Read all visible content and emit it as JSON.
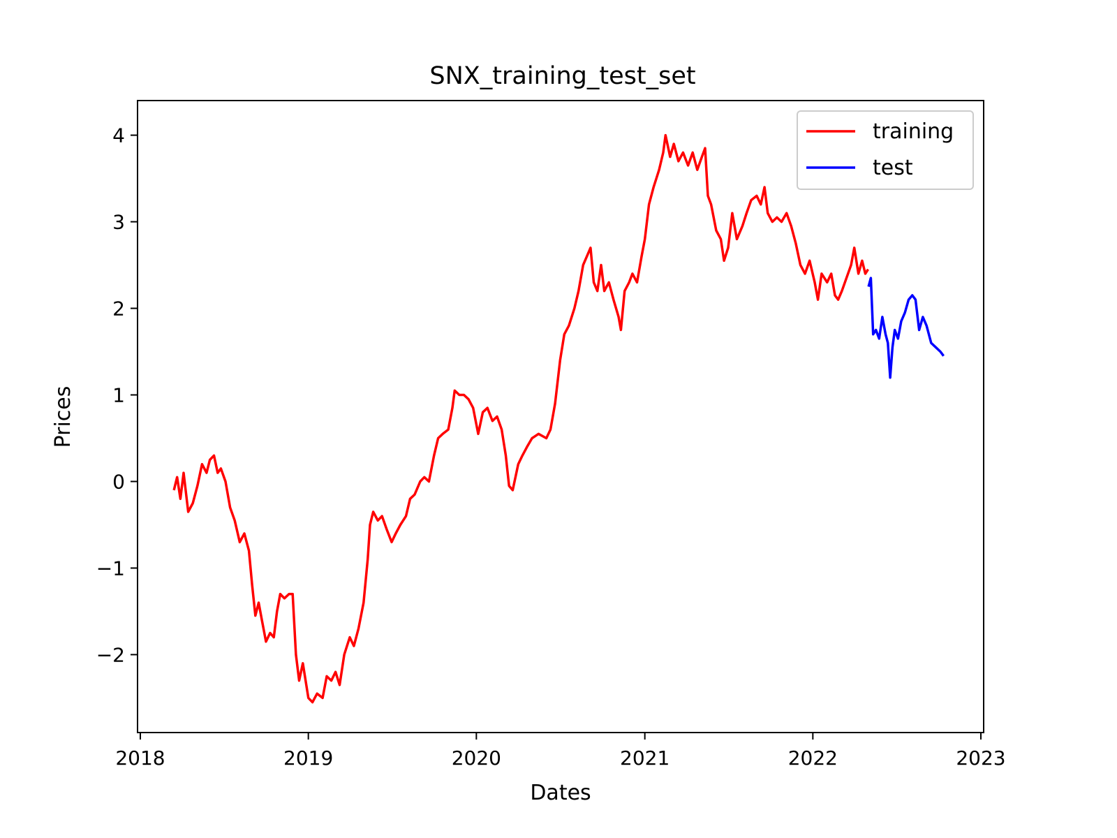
{
  "chart_data": {
    "type": "line",
    "title": "SNX_training_test_set",
    "xlabel": "Dates",
    "ylabel": "Prices",
    "xlim": [
      "2018-01-01",
      "2023-01-01"
    ],
    "ylim": [
      -2.9,
      4.4
    ],
    "x_ticks": [
      "2018",
      "2019",
      "2020",
      "2021",
      "2022",
      "2023"
    ],
    "y_ticks": [
      {
        "value": -2,
        "label": "−2"
      },
      {
        "value": -1,
        "label": "−1"
      },
      {
        "value": 0,
        "label": "0"
      },
      {
        "value": 1,
        "label": "1"
      },
      {
        "value": 2,
        "label": "2"
      },
      {
        "value": 3,
        "label": "3"
      },
      {
        "value": 4,
        "label": "4"
      }
    ],
    "grid": false,
    "legend_position": "top-right",
    "series": [
      {
        "name": "training",
        "color": "#ff0000",
        "points": [
          [
            "2018-03-15",
            -0.1
          ],
          [
            "2018-03-22",
            0.05
          ],
          [
            "2018-03-29",
            -0.2
          ],
          [
            "2018-04-05",
            0.1
          ],
          [
            "2018-04-15",
            -0.35
          ],
          [
            "2018-04-25",
            -0.25
          ],
          [
            "2018-05-05",
            -0.05
          ],
          [
            "2018-05-15",
            0.2
          ],
          [
            "2018-05-25",
            0.1
          ],
          [
            "2018-06-01",
            0.25
          ],
          [
            "2018-06-10",
            0.3
          ],
          [
            "2018-06-18",
            0.1
          ],
          [
            "2018-06-25",
            0.15
          ],
          [
            "2018-07-05",
            0.0
          ],
          [
            "2018-07-15",
            -0.3
          ],
          [
            "2018-07-25",
            -0.45
          ],
          [
            "2018-08-05",
            -0.7
          ],
          [
            "2018-08-15",
            -0.6
          ],
          [
            "2018-08-25",
            -0.8
          ],
          [
            "2018-09-01",
            -1.2
          ],
          [
            "2018-09-08",
            -1.55
          ],
          [
            "2018-09-15",
            -1.4
          ],
          [
            "2018-09-22",
            -1.6
          ],
          [
            "2018-10-01",
            -1.85
          ],
          [
            "2018-10-10",
            -1.75
          ],
          [
            "2018-10-18",
            -1.8
          ],
          [
            "2018-10-25",
            -1.5
          ],
          [
            "2018-11-01",
            -1.3
          ],
          [
            "2018-11-10",
            -1.35
          ],
          [
            "2018-11-20",
            -1.3
          ],
          [
            "2018-11-28",
            -1.3
          ],
          [
            "2018-12-05",
            -2.0
          ],
          [
            "2018-12-12",
            -2.3
          ],
          [
            "2018-12-20",
            -2.1
          ],
          [
            "2019-01-01",
            -2.5
          ],
          [
            "2019-01-10",
            -2.55
          ],
          [
            "2019-01-20",
            -2.45
          ],
          [
            "2019-02-01",
            -2.5
          ],
          [
            "2019-02-10",
            -2.25
          ],
          [
            "2019-02-20",
            -2.3
          ],
          [
            "2019-03-01",
            -2.2
          ],
          [
            "2019-03-10",
            -2.35
          ],
          [
            "2019-03-20",
            -2.0
          ],
          [
            "2019-04-01",
            -1.8
          ],
          [
            "2019-04-10",
            -1.9
          ],
          [
            "2019-04-20",
            -1.7
          ],
          [
            "2019-05-01",
            -1.4
          ],
          [
            "2019-05-10",
            -0.9
          ],
          [
            "2019-05-15",
            -0.5
          ],
          [
            "2019-05-22",
            -0.35
          ],
          [
            "2019-06-01",
            -0.45
          ],
          [
            "2019-06-10",
            -0.4
          ],
          [
            "2019-06-20",
            -0.55
          ],
          [
            "2019-07-01",
            -0.7
          ],
          [
            "2019-07-10",
            -0.6
          ],
          [
            "2019-07-20",
            -0.5
          ],
          [
            "2019-08-01",
            -0.4
          ],
          [
            "2019-08-10",
            -0.2
          ],
          [
            "2019-08-20",
            -0.15
          ],
          [
            "2019-09-01",
            0.0
          ],
          [
            "2019-09-10",
            0.05
          ],
          [
            "2019-09-20",
            0.0
          ],
          [
            "2019-10-01",
            0.3
          ],
          [
            "2019-10-10",
            0.5
          ],
          [
            "2019-10-20",
            0.55
          ],
          [
            "2019-11-01",
            0.6
          ],
          [
            "2019-11-10",
            0.85
          ],
          [
            "2019-11-15",
            1.05
          ],
          [
            "2019-11-25",
            1.0
          ],
          [
            "2019-12-05",
            1.0
          ],
          [
            "2019-12-15",
            0.95
          ],
          [
            "2019-12-25",
            0.85
          ],
          [
            "2020-01-05",
            0.55
          ],
          [
            "2020-01-15",
            0.8
          ],
          [
            "2020-01-25",
            0.85
          ],
          [
            "2020-02-05",
            0.7
          ],
          [
            "2020-02-15",
            0.75
          ],
          [
            "2020-02-25",
            0.6
          ],
          [
            "2020-03-05",
            0.3
          ],
          [
            "2020-03-12",
            -0.05
          ],
          [
            "2020-03-20",
            -0.1
          ],
          [
            "2020-04-01",
            0.2
          ],
          [
            "2020-04-10",
            0.3
          ],
          [
            "2020-04-20",
            0.4
          ],
          [
            "2020-05-01",
            0.5
          ],
          [
            "2020-05-15",
            0.55
          ],
          [
            "2020-06-01",
            0.5
          ],
          [
            "2020-06-10",
            0.6
          ],
          [
            "2020-06-20",
            0.9
          ],
          [
            "2020-07-01",
            1.4
          ],
          [
            "2020-07-10",
            1.7
          ],
          [
            "2020-07-20",
            1.8
          ],
          [
            "2020-08-01",
            2.0
          ],
          [
            "2020-08-10",
            2.2
          ],
          [
            "2020-08-20",
            2.5
          ],
          [
            "2020-08-28",
            2.6
          ],
          [
            "2020-09-05",
            2.7
          ],
          [
            "2020-09-12",
            2.3
          ],
          [
            "2020-09-20",
            2.2
          ],
          [
            "2020-09-28",
            2.5
          ],
          [
            "2020-10-05",
            2.2
          ],
          [
            "2020-10-15",
            2.3
          ],
          [
            "2020-10-25",
            2.1
          ],
          [
            "2020-11-05",
            1.9
          ],
          [
            "2020-11-10",
            1.75
          ],
          [
            "2020-11-18",
            2.2
          ],
          [
            "2020-11-28",
            2.3
          ],
          [
            "2020-12-05",
            2.4
          ],
          [
            "2020-12-15",
            2.3
          ],
          [
            "2020-12-25",
            2.6
          ],
          [
            "2021-01-01",
            2.8
          ],
          [
            "2021-01-10",
            3.2
          ],
          [
            "2021-01-20",
            3.4
          ],
          [
            "2021-02-01",
            3.6
          ],
          [
            "2021-02-10",
            3.8
          ],
          [
            "2021-02-15",
            4.0
          ],
          [
            "2021-02-25",
            3.75
          ],
          [
            "2021-03-05",
            3.9
          ],
          [
            "2021-03-15",
            3.7
          ],
          [
            "2021-03-25",
            3.8
          ],
          [
            "2021-04-05",
            3.65
          ],
          [
            "2021-04-15",
            3.8
          ],
          [
            "2021-04-25",
            3.6
          ],
          [
            "2021-05-05",
            3.75
          ],
          [
            "2021-05-12",
            3.85
          ],
          [
            "2021-05-18",
            3.3
          ],
          [
            "2021-05-25",
            3.2
          ],
          [
            "2021-06-05",
            2.9
          ],
          [
            "2021-06-15",
            2.8
          ],
          [
            "2021-06-22",
            2.55
          ],
          [
            "2021-07-01",
            2.7
          ],
          [
            "2021-07-10",
            3.1
          ],
          [
            "2021-07-20",
            2.8
          ],
          [
            "2021-08-01",
            2.95
          ],
          [
            "2021-08-10",
            3.1
          ],
          [
            "2021-08-20",
            3.25
          ],
          [
            "2021-09-01",
            3.3
          ],
          [
            "2021-09-10",
            3.2
          ],
          [
            "2021-09-18",
            3.4
          ],
          [
            "2021-09-25",
            3.1
          ],
          [
            "2021-10-05",
            3.0
          ],
          [
            "2021-10-15",
            3.05
          ],
          [
            "2021-10-25",
            3.0
          ],
          [
            "2021-11-05",
            3.1
          ],
          [
            "2021-11-15",
            2.95
          ],
          [
            "2021-11-25",
            2.75
          ],
          [
            "2021-12-05",
            2.5
          ],
          [
            "2021-12-15",
            2.4
          ],
          [
            "2021-12-25",
            2.55
          ],
          [
            "2022-01-05",
            2.3
          ],
          [
            "2022-01-12",
            2.1
          ],
          [
            "2022-01-20",
            2.4
          ],
          [
            "2022-02-01",
            2.3
          ],
          [
            "2022-02-10",
            2.4
          ],
          [
            "2022-02-18",
            2.15
          ],
          [
            "2022-02-25",
            2.1
          ],
          [
            "2022-03-05",
            2.2
          ],
          [
            "2022-03-15",
            2.35
          ],
          [
            "2022-03-25",
            2.5
          ],
          [
            "2022-04-01",
            2.7
          ],
          [
            "2022-04-10",
            2.4
          ],
          [
            "2022-04-18",
            2.55
          ],
          [
            "2022-04-25",
            2.4
          ],
          [
            "2022-05-01",
            2.45
          ]
        ]
      },
      {
        "name": "test",
        "color": "#0000ff",
        "points": [
          [
            "2022-05-02",
            2.25
          ],
          [
            "2022-05-07",
            2.35
          ],
          [
            "2022-05-12",
            1.7
          ],
          [
            "2022-05-18",
            1.75
          ],
          [
            "2022-05-25",
            1.65
          ],
          [
            "2022-06-01",
            1.9
          ],
          [
            "2022-06-08",
            1.7
          ],
          [
            "2022-06-13",
            1.6
          ],
          [
            "2022-06-18",
            1.2
          ],
          [
            "2022-06-23",
            1.55
          ],
          [
            "2022-06-28",
            1.75
          ],
          [
            "2022-07-05",
            1.65
          ],
          [
            "2022-07-12",
            1.85
          ],
          [
            "2022-07-20",
            1.95
          ],
          [
            "2022-07-28",
            2.1
          ],
          [
            "2022-08-05",
            2.15
          ],
          [
            "2022-08-12",
            2.1
          ],
          [
            "2022-08-20",
            1.75
          ],
          [
            "2022-08-28",
            1.9
          ],
          [
            "2022-09-05",
            1.8
          ],
          [
            "2022-09-15",
            1.6
          ],
          [
            "2022-09-25",
            1.55
          ],
          [
            "2022-10-05",
            1.5
          ],
          [
            "2022-10-12",
            1.45
          ]
        ]
      }
    ]
  }
}
